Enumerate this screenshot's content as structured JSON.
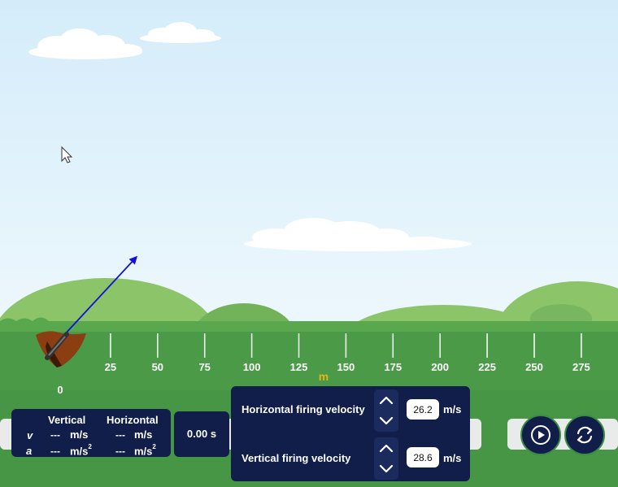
{
  "ruler": {
    "zero_label": "0",
    "tick_labels": [
      "25",
      "50",
      "75",
      "100",
      "125",
      "150",
      "175",
      "200",
      "225",
      "250",
      "275"
    ],
    "unit": "m"
  },
  "cannon": {
    "aim_vector_icon": "arrow-icon"
  },
  "readout": {
    "vertical_header": "Vertical",
    "horizontal_header": "Horizontal",
    "v_label": "v",
    "a_label": "a",
    "v_vertical": "---",
    "v_horizontal": "---",
    "a_vertical": "---",
    "a_horizontal": "---",
    "velocity_unit": "m/s",
    "accel_unit": "m/s",
    "accel_exponent": "2"
  },
  "timer": {
    "value": "0.00 s"
  },
  "controls": {
    "horizontal": {
      "label": "Horizontal firing velocity",
      "value": "26.2",
      "unit": "m/s"
    },
    "vertical": {
      "label": "Vertical firing velocity",
      "value": "28.6",
      "unit": "m/s"
    }
  },
  "buttons": {
    "play_icon": "play-icon",
    "reset_icon": "reset-icon"
  },
  "colors": {
    "sky_top": "#d4ecfa",
    "grass": "#4a9a48",
    "panel": "#101e49",
    "unit_accent": "#e8b21b",
    "arrow": "#1010d8"
  }
}
